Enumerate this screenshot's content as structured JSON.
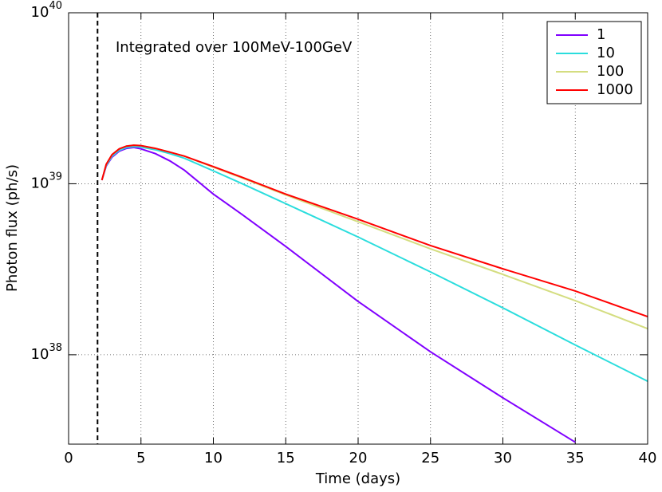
{
  "chart_data": {
    "type": "line",
    "xlabel": "Time (days)",
    "ylabel": "Photon flux (ph/s)",
    "annotation": "Integrated over 100MeV-100GeV",
    "vline": 2,
    "ylog": true,
    "grid": true,
    "legend": "upper right",
    "xlim": [
      0,
      40
    ],
    "xticks": [
      0,
      5,
      10,
      15,
      20,
      25,
      30,
      35,
      40
    ],
    "ylim": [
      3e+37,
      1e+40
    ],
    "yticks": [
      {
        "value": 1e+38,
        "label": "10^38"
      },
      {
        "value": 1e+39,
        "label": "10^39"
      },
      {
        "value": 1e+40,
        "label": "10^40"
      }
    ],
    "x": [
      2.3,
      2.6,
      3,
      3.5,
      4,
      4.5,
      5,
      6,
      7,
      8,
      10,
      12,
      15,
      20,
      25,
      30,
      35,
      40
    ],
    "series": [
      {
        "name": "1",
        "color": "#8000ff",
        "values": [
          1.05e+39,
          1.27e+39,
          1.43e+39,
          1.55e+39,
          1.61e+39,
          1.63e+39,
          1.6e+39,
          1.5e+39,
          1.36e+39,
          1.2e+39,
          8.7e+38,
          6.6e+38,
          4.3e+38,
          2.05e+38,
          1.04e+38,
          5.6e+37,
          3.08e+37,
          null
        ]
      },
      {
        "name": "10",
        "color": "#2adddd",
        "values": [
          1.05e+39,
          1.28e+39,
          1.45e+39,
          1.57e+39,
          1.63e+39,
          1.65e+39,
          1.64e+39,
          1.58e+39,
          1.5e+39,
          1.41e+39,
          1.19e+39,
          1e+39,
          7.65e+38,
          4.88e+38,
          3.05e+38,
          1.88e+38,
          1.14e+38,
          7e+37
        ]
      },
      {
        "name": "100",
        "color": "#d4dd80",
        "values": [
          1.05e+39,
          1.3e+39,
          1.48e+39,
          1.6e+39,
          1.66e+39,
          1.68e+39,
          1.67e+39,
          1.61e+39,
          1.53e+39,
          1.45e+39,
          1.25e+39,
          1.08e+39,
          8.6e+38,
          6e+38,
          4.16e+38,
          2.95e+38,
          2.07e+38,
          1.42e+38
        ]
      },
      {
        "name": "1000",
        "color": "#ff0000",
        "values": [
          1.05e+39,
          1.3e+39,
          1.48e+39,
          1.6e+39,
          1.66e+39,
          1.68e+39,
          1.67e+39,
          1.61e+39,
          1.53e+39,
          1.45e+39,
          1.26e+39,
          1.09e+39,
          8.7e+38,
          6.2e+38,
          4.35e+38,
          3.18e+38,
          2.36e+38,
          1.67e+38
        ]
      }
    ]
  }
}
